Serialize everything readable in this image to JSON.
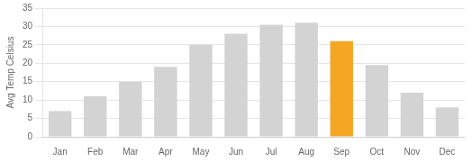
{
  "chart_data": {
    "type": "bar",
    "categories": [
      "Jan",
      "Feb",
      "Mar",
      "Apr",
      "May",
      "Jun",
      "Jul",
      "Aug",
      "Sep",
      "Oct",
      "Nov",
      "Dec"
    ],
    "values": [
      7,
      11,
      15,
      19,
      25,
      28,
      30.5,
      31,
      26,
      19.5,
      12,
      8
    ],
    "colors": [
      "#d3d3d3",
      "#d3d3d3",
      "#d3d3d3",
      "#d3d3d3",
      "#d3d3d3",
      "#d3d3d3",
      "#d3d3d3",
      "#d3d3d3",
      "#f5a623",
      "#d3d3d3",
      "#d3d3d3",
      "#d3d3d3"
    ],
    "ylabel": "Avg Temp Celsius",
    "ylim": [
      0,
      35
    ],
    "yticks": [
      0,
      5,
      10,
      15,
      20,
      25,
      30,
      35
    ],
    "grid": true
  }
}
